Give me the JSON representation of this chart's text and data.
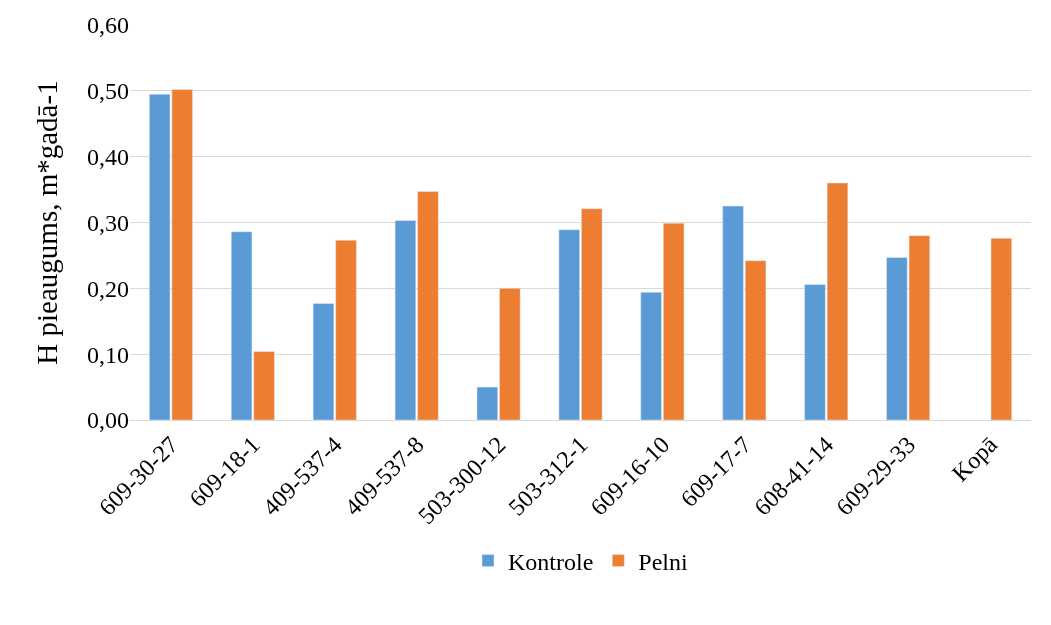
{
  "chart_data": {
    "type": "bar",
    "ylabel": "H pieaugums, m*gadā-1",
    "categories": [
      "609-30-27",
      "609-18-1",
      "409-537-4",
      "409-537-8",
      "503-300-12",
      "503-312-1",
      "609-16-10",
      "609-17-7",
      "608-41-14",
      "609-29-33",
      "Kopā"
    ],
    "series": [
      {
        "name": "Kontrole",
        "color": "#5b9bd5",
        "values": [
          0.495,
          0.286,
          0.177,
          0.303,
          0.05,
          0.289,
          0.194,
          0.325,
          0.206,
          0.247,
          null
        ]
      },
      {
        "name": "Pelni",
        "color": "#ed7d31",
        "values": [
          0.502,
          0.104,
          0.273,
          0.347,
          0.2,
          0.321,
          0.299,
          0.242,
          0.36,
          0.28,
          0.276
        ]
      }
    ],
    "ylim": [
      0,
      0.6
    ],
    "yticks": [
      {
        "value": 0,
        "label": "0,00"
      },
      {
        "value": 0.1,
        "label": "0,10"
      },
      {
        "value": 0.2,
        "label": "0,20"
      },
      {
        "value": 0.3,
        "label": "0,30"
      },
      {
        "value": 0.4,
        "label": "0,40"
      },
      {
        "value": 0.5,
        "label": "0,50"
      },
      {
        "value": 0.6,
        "label": "0,60"
      }
    ],
    "grid": "y",
    "legend": "bottom"
  }
}
